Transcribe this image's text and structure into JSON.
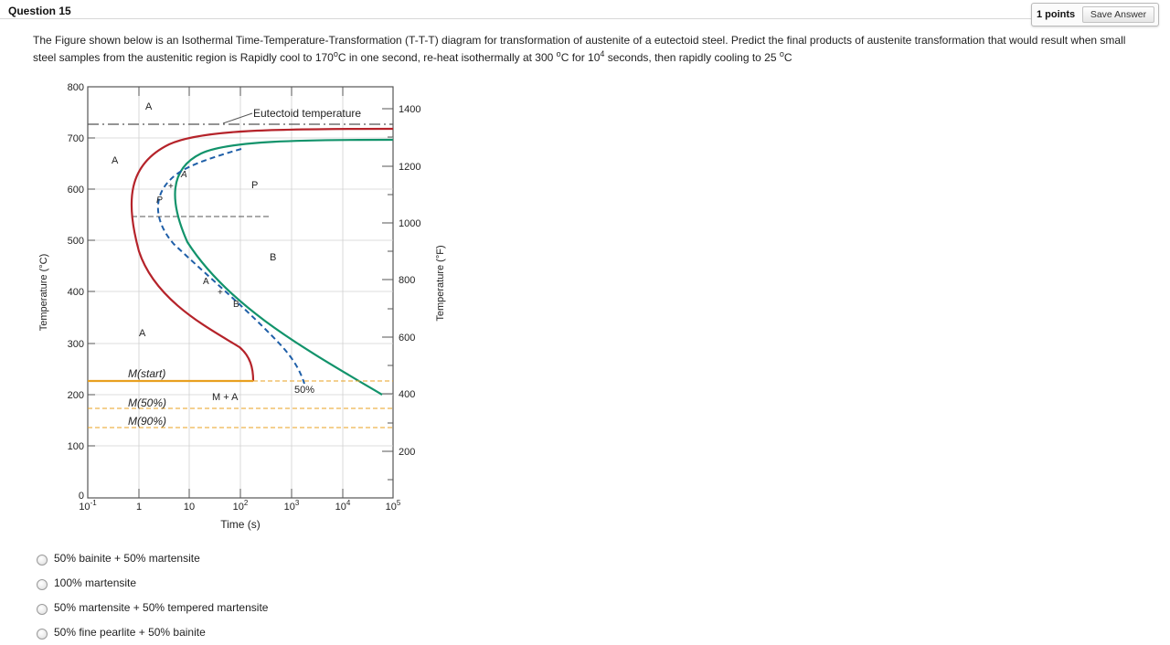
{
  "question": {
    "title": "Question 15",
    "points_label": "1 points",
    "save_label": "Save Answer",
    "prompt_1": "The Figure shown below is an Isothermal Time-Temperature-Transformation (T-T-T) diagram for transformation of austenite of a eutectoid steel. Predict the final products of austenite transformation that would result when small steel samples from the austenitic region is Rapidly cool to 170",
    "prompt_deg1": "o",
    "prompt_2": "C in one second, re-heat isothermally at 300 ",
    "prompt_deg2": "o",
    "prompt_3": "C for 10",
    "prompt_exp": "4",
    "prompt_4": " seconds, then rapidly cooling to 25 ",
    "prompt_deg3": "o",
    "prompt_5": "C"
  },
  "figure": {
    "y_axis_left_label": "Temperature (°C)",
    "y_axis_right_label": "Temperature (°F)",
    "x_axis_label": "Time (s)",
    "left_ticks": [
      "800",
      "700",
      "600",
      "500",
      "400",
      "300",
      "200",
      "100",
      "0"
    ],
    "right_ticks": [
      "1400",
      "1200",
      "1000",
      "800",
      "600",
      "400",
      "200"
    ],
    "x_ticks": [
      {
        "base": "10",
        "exp": "-1"
      },
      {
        "base": "1",
        "exp": ""
      },
      {
        "base": "10",
        "exp": ""
      },
      {
        "base": "10",
        "exp": "2"
      },
      {
        "base": "10",
        "exp": "3"
      },
      {
        "base": "10",
        "exp": "4"
      },
      {
        "base": "10",
        "exp": "5"
      }
    ],
    "labels": {
      "eutectoid": "Eutectoid temperature",
      "a_top": "A",
      "a_left": "A",
      "a_low": "A",
      "p": "P",
      "b": "B",
      "p_small": "P",
      "a_small": "A",
      "plus1": "+",
      "a_small2": "A",
      "plus2": "+",
      "b_small": "B",
      "fifty": "50%",
      "m_start": "M(start)",
      "m_plus_a": "M + A",
      "m50": "M(50%)",
      "m90": "M(90%)"
    },
    "colors": {
      "start_curve": "#b5232a",
      "finish_curve": "#12936b",
      "fifty_curve": "#1f5fa8",
      "martensite": "#e8a020"
    }
  },
  "answers": [
    {
      "label": "50% bainite + 50% martensite"
    },
    {
      "label": "100% martensite"
    },
    {
      "label": "50% martensite + 50% tempered martensite"
    },
    {
      "label": "50% fine pearlite + 50% bainite"
    }
  ]
}
